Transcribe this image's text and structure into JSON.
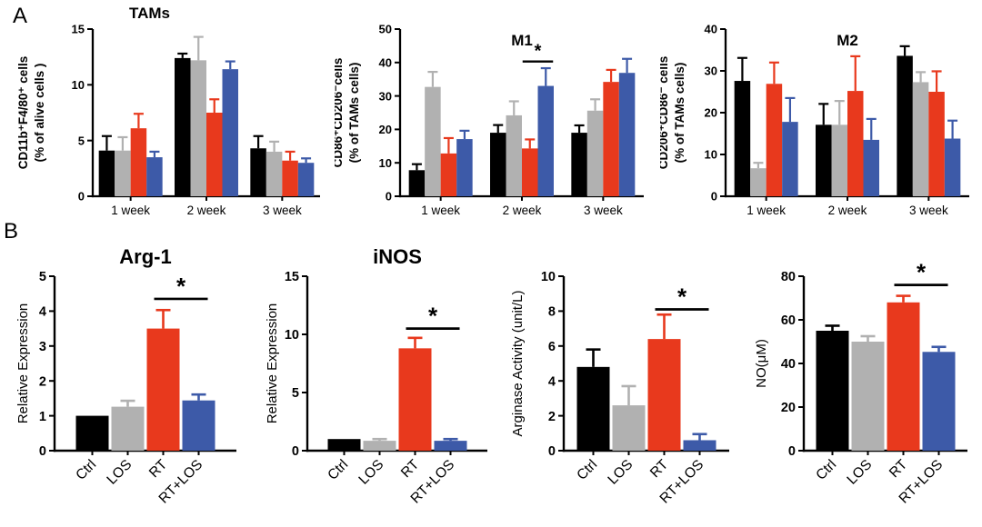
{
  "figure": {
    "panel_a_label": "A",
    "panel_b_label": "B",
    "background": "#FFFFFF"
  },
  "colors": {
    "black": "#000000",
    "gray": "#B1B1B1",
    "red": "#E8391D",
    "blue": "#3D5AA8"
  },
  "chart_data": [
    {
      "id": "tams",
      "type": "bar",
      "panel": "A",
      "title": "TAMs",
      "ylabel_lines": [
        "CD11b⁺F4/80⁺ cells",
        "(% of alive cells )"
      ],
      "ylim": [
        0,
        15
      ],
      "yticks": [
        0,
        5,
        10,
        15
      ],
      "grid": false,
      "legend": "none",
      "categories": [
        "1 week",
        "2 week",
        "3 week"
      ],
      "series": [
        {
          "name": "black",
          "color": "black",
          "values": [
            4.1,
            12.4,
            4.3
          ],
          "errors": [
            1.3,
            0.4,
            1.1
          ]
        },
        {
          "name": "gray",
          "color": "gray",
          "values": [
            4.1,
            12.2,
            4.0
          ],
          "errors": [
            1.2,
            2.1,
            0.9
          ]
        },
        {
          "name": "red",
          "color": "red",
          "values": [
            6.1,
            7.5,
            3.2
          ],
          "errors": [
            1.3,
            1.2,
            0.8
          ]
        },
        {
          "name": "blue",
          "color": "blue",
          "values": [
            3.5,
            11.4,
            3.0
          ],
          "errors": [
            0.5,
            0.7,
            0.4
          ]
        }
      ],
      "significance": null
    },
    {
      "id": "m1",
      "type": "bar",
      "panel": "A",
      "title": "M1",
      "ylabel_lines": [
        "CD86⁺CD206⁻cells",
        "(% of TAMs cells)"
      ],
      "ylim": [
        0,
        50
      ],
      "yticks": [
        0,
        10,
        20,
        30,
        40,
        50
      ],
      "grid": false,
      "legend": "none",
      "categories": [
        "1 week",
        "2 week",
        "3 week"
      ],
      "series": [
        {
          "name": "black",
          "color": "black",
          "values": [
            7.8,
            19.0,
            19.0
          ],
          "errors": [
            1.8,
            2.3,
            2.2
          ]
        },
        {
          "name": "gray",
          "color": "gray",
          "values": [
            32.7,
            24.2,
            25.6
          ],
          "errors": [
            4.5,
            4.2,
            3.4
          ]
        },
        {
          "name": "red",
          "color": "red",
          "values": [
            12.8,
            14.3,
            34.2
          ],
          "errors": [
            4.6,
            2.7,
            3.6
          ]
        },
        {
          "name": "blue",
          "color": "blue",
          "values": [
            17.1,
            33.0,
            36.9
          ],
          "errors": [
            2.5,
            5.3,
            4.2
          ]
        }
      ],
      "significance": {
        "category": "2 week",
        "between": [
          "red",
          "blue"
        ],
        "y": 40.3,
        "label": "*"
      }
    },
    {
      "id": "m2",
      "type": "bar",
      "panel": "A",
      "title": "M2",
      "ylabel_lines": [
        "CD206⁺CD86⁻ cells",
        "(% of TAMs cells)"
      ],
      "ylim": [
        0,
        40
      ],
      "yticks": [
        0,
        10,
        20,
        30,
        40
      ],
      "grid": false,
      "legend": "none",
      "categories": [
        "1 week",
        "2 week",
        "3 week"
      ],
      "series": [
        {
          "name": "black",
          "color": "black",
          "values": [
            27.6,
            17.1,
            33.6
          ],
          "errors": [
            5.5,
            5.0,
            2.3
          ]
        },
        {
          "name": "gray",
          "color": "gray",
          "values": [
            6.7,
            17.1,
            27.3
          ],
          "errors": [
            1.3,
            5.7,
            2.4
          ]
        },
        {
          "name": "red",
          "color": "red",
          "values": [
            26.9,
            25.2,
            25.0
          ],
          "errors": [
            5.1,
            8.3,
            4.9
          ]
        },
        {
          "name": "blue",
          "color": "blue",
          "values": [
            17.8,
            13.5,
            13.8
          ],
          "errors": [
            5.7,
            5.0,
            4.3
          ]
        }
      ],
      "significance": null
    },
    {
      "id": "arg1",
      "type": "bar",
      "panel": "B",
      "title": "Arg-1",
      "ylabel_lines": [
        "Relative Expression"
      ],
      "ylim": [
        0,
        5
      ],
      "yticks": [
        0,
        1,
        2,
        3,
        4,
        5
      ],
      "grid": false,
      "legend": "none",
      "categories": [
        "Ctrl",
        "LOS",
        "RT",
        "RT+LOS"
      ],
      "bar_colors": [
        "black",
        "gray",
        "red",
        "blue"
      ],
      "values": [
        1.0,
        1.26,
        3.5,
        1.44
      ],
      "errors": [
        0,
        0.17,
        0.53,
        0.17
      ],
      "significance": {
        "between": [
          "RT",
          "RT+LOS"
        ],
        "y": 4.35,
        "label": "*"
      }
    },
    {
      "id": "inos",
      "type": "bar",
      "panel": "B",
      "title": "iNOS",
      "ylabel_lines": [
        "Relative Expression"
      ],
      "ylim": [
        0,
        15
      ],
      "yticks": [
        0,
        5,
        10,
        15
      ],
      "grid": false,
      "legend": "none",
      "categories": [
        "Ctrl",
        "LOS",
        "RT",
        "RT+LOS"
      ],
      "bar_colors": [
        "black",
        "gray",
        "red",
        "blue"
      ],
      "values": [
        1.0,
        0.85,
        8.8,
        0.85
      ],
      "errors": [
        0,
        0.15,
        0.9,
        0.15
      ],
      "significance": {
        "between": [
          "RT",
          "RT+LOS"
        ],
        "y": 10.5,
        "label": "*"
      }
    },
    {
      "id": "arginase",
      "type": "bar",
      "panel": "B",
      "title": "",
      "ylabel_lines": [
        "Arginase Activity (unit/L)"
      ],
      "ylim": [
        0,
        10
      ],
      "yticks": [
        0,
        2,
        4,
        6,
        8,
        10
      ],
      "grid": false,
      "legend": "none",
      "categories": [
        "Ctrl",
        "LOS",
        "RT",
        "RT+LOS"
      ],
      "bar_colors": [
        "black",
        "gray",
        "red",
        "blue"
      ],
      "values": [
        4.8,
        2.6,
        6.4,
        0.6
      ],
      "errors": [
        1.0,
        1.1,
        1.4,
        0.35
      ],
      "significance": {
        "between": [
          "RT",
          "RT+LOS"
        ],
        "y": 8.1,
        "label": "*"
      }
    },
    {
      "id": "no",
      "type": "bar",
      "panel": "B",
      "title": "",
      "ylabel_lines": [
        "NO(μM)"
      ],
      "ylim": [
        0,
        80
      ],
      "yticks": [
        0,
        20,
        40,
        60,
        80
      ],
      "grid": false,
      "legend": "none",
      "categories": [
        "Ctrl",
        "LOS",
        "RT",
        "RT+LOS"
      ],
      "bar_colors": [
        "black",
        "gray",
        "red",
        "blue"
      ],
      "values": [
        55,
        50,
        68,
        45.3
      ],
      "errors": [
        2.3,
        2.5,
        3.0,
        2.3
      ],
      "significance": {
        "between": [
          "RT",
          "RT+LOS"
        ],
        "y": 76,
        "label": "*"
      }
    }
  ]
}
